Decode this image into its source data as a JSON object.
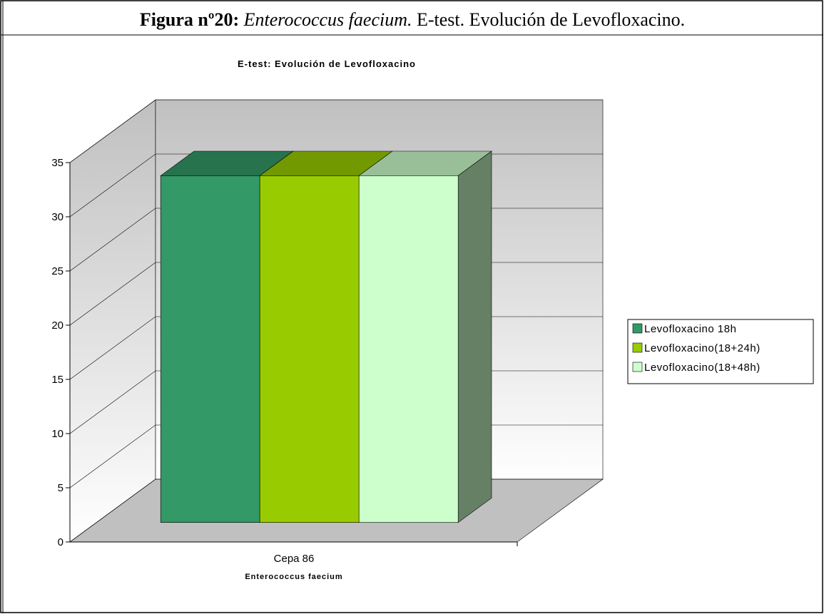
{
  "header": {
    "label": "Figura nº20:",
    "species": "Enterococcus faecium.",
    "rest": "E-test. Evolución de Levofloxacino."
  },
  "chart_data": {
    "type": "bar3d",
    "title": "E-test: Evolución de Levofloxacino",
    "categories": [
      "Cepa 86"
    ],
    "x_label": "Enterococcus faecium",
    "series": [
      {
        "name": "Levofloxacino 18h",
        "color": "#339966",
        "values": [
          32
        ]
      },
      {
        "name": "Levofloxacino(18+24h)",
        "color": "#99cc00",
        "values": [
          32
        ]
      },
      {
        "name": "Levofloxacino(18+48h)",
        "color": "#ccffcc",
        "values": [
          32
        ]
      }
    ],
    "ylim": [
      0,
      35
    ],
    "yticks": [
      0,
      5,
      10,
      15,
      20,
      25,
      30,
      35
    ],
    "grid": true,
    "legend": "right"
  }
}
